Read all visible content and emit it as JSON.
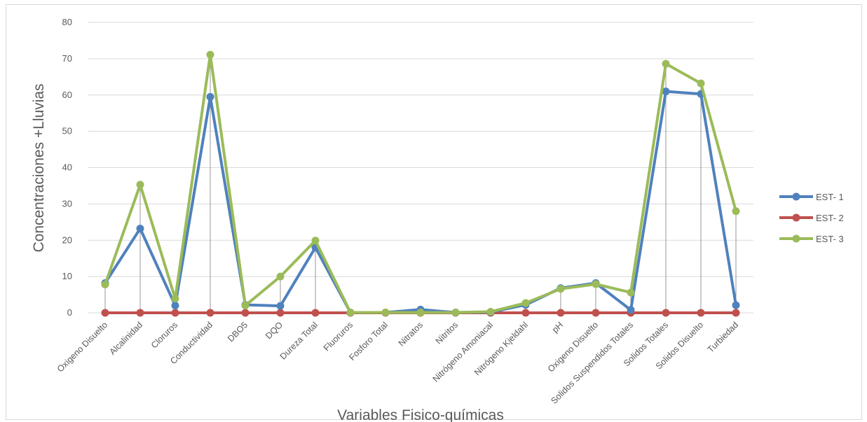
{
  "chart_data": {
    "type": "line",
    "title": "",
    "xlabel": "Variables Fisico-químicas",
    "ylabel": "Concentraciones +Lluvias",
    "ylim": [
      0,
      80
    ],
    "yticks": [
      0,
      10,
      20,
      30,
      40,
      50,
      60,
      70,
      80
    ],
    "grid": true,
    "drop_lines": true,
    "legend_position": "right",
    "categories": [
      "Oxigeno Disuelto",
      "Alcalinidad",
      "Cloruros",
      "Conductividad",
      "DBO5",
      "DQO",
      "Dureza Total",
      "Fluoruros",
      "Fosforo Total",
      "Nitratos",
      "Nitritos",
      "Nitrógeno Amoniacal",
      "Nitrógeno Kjeldahl",
      "pH",
      "Oxigeno Disuelto",
      "Solidos Suspendidos Totales",
      "Solidos Totales",
      "Solidos Disuelto",
      "Turbiedad"
    ],
    "series": [
      {
        "name": "EST- 1",
        "color": "#4f81bd",
        "values": [
          8.2,
          23.2,
          2.0,
          59.5,
          2.2,
          1.9,
          18.0,
          0.1,
          0.1,
          0.9,
          0.1,
          0.2,
          2.2,
          6.8,
          8.2,
          0.8,
          61.0,
          60.3,
          2.1
        ]
      },
      {
        "name": "EST- 2",
        "color": "#c0504d",
        "values": [
          0,
          0,
          0,
          0,
          0,
          0,
          0,
          0,
          0,
          0,
          0,
          0,
          0,
          0,
          0,
          0,
          0,
          0,
          0
        ]
      },
      {
        "name": "EST- 3",
        "color": "#9bbb59",
        "values": [
          7.8,
          35.3,
          3.9,
          71.1,
          2.0,
          10.0,
          19.9,
          0.1,
          0.1,
          0.1,
          0.1,
          0.3,
          2.7,
          6.6,
          7.9,
          5.6,
          68.6,
          63.2,
          28.0
        ]
      }
    ]
  }
}
